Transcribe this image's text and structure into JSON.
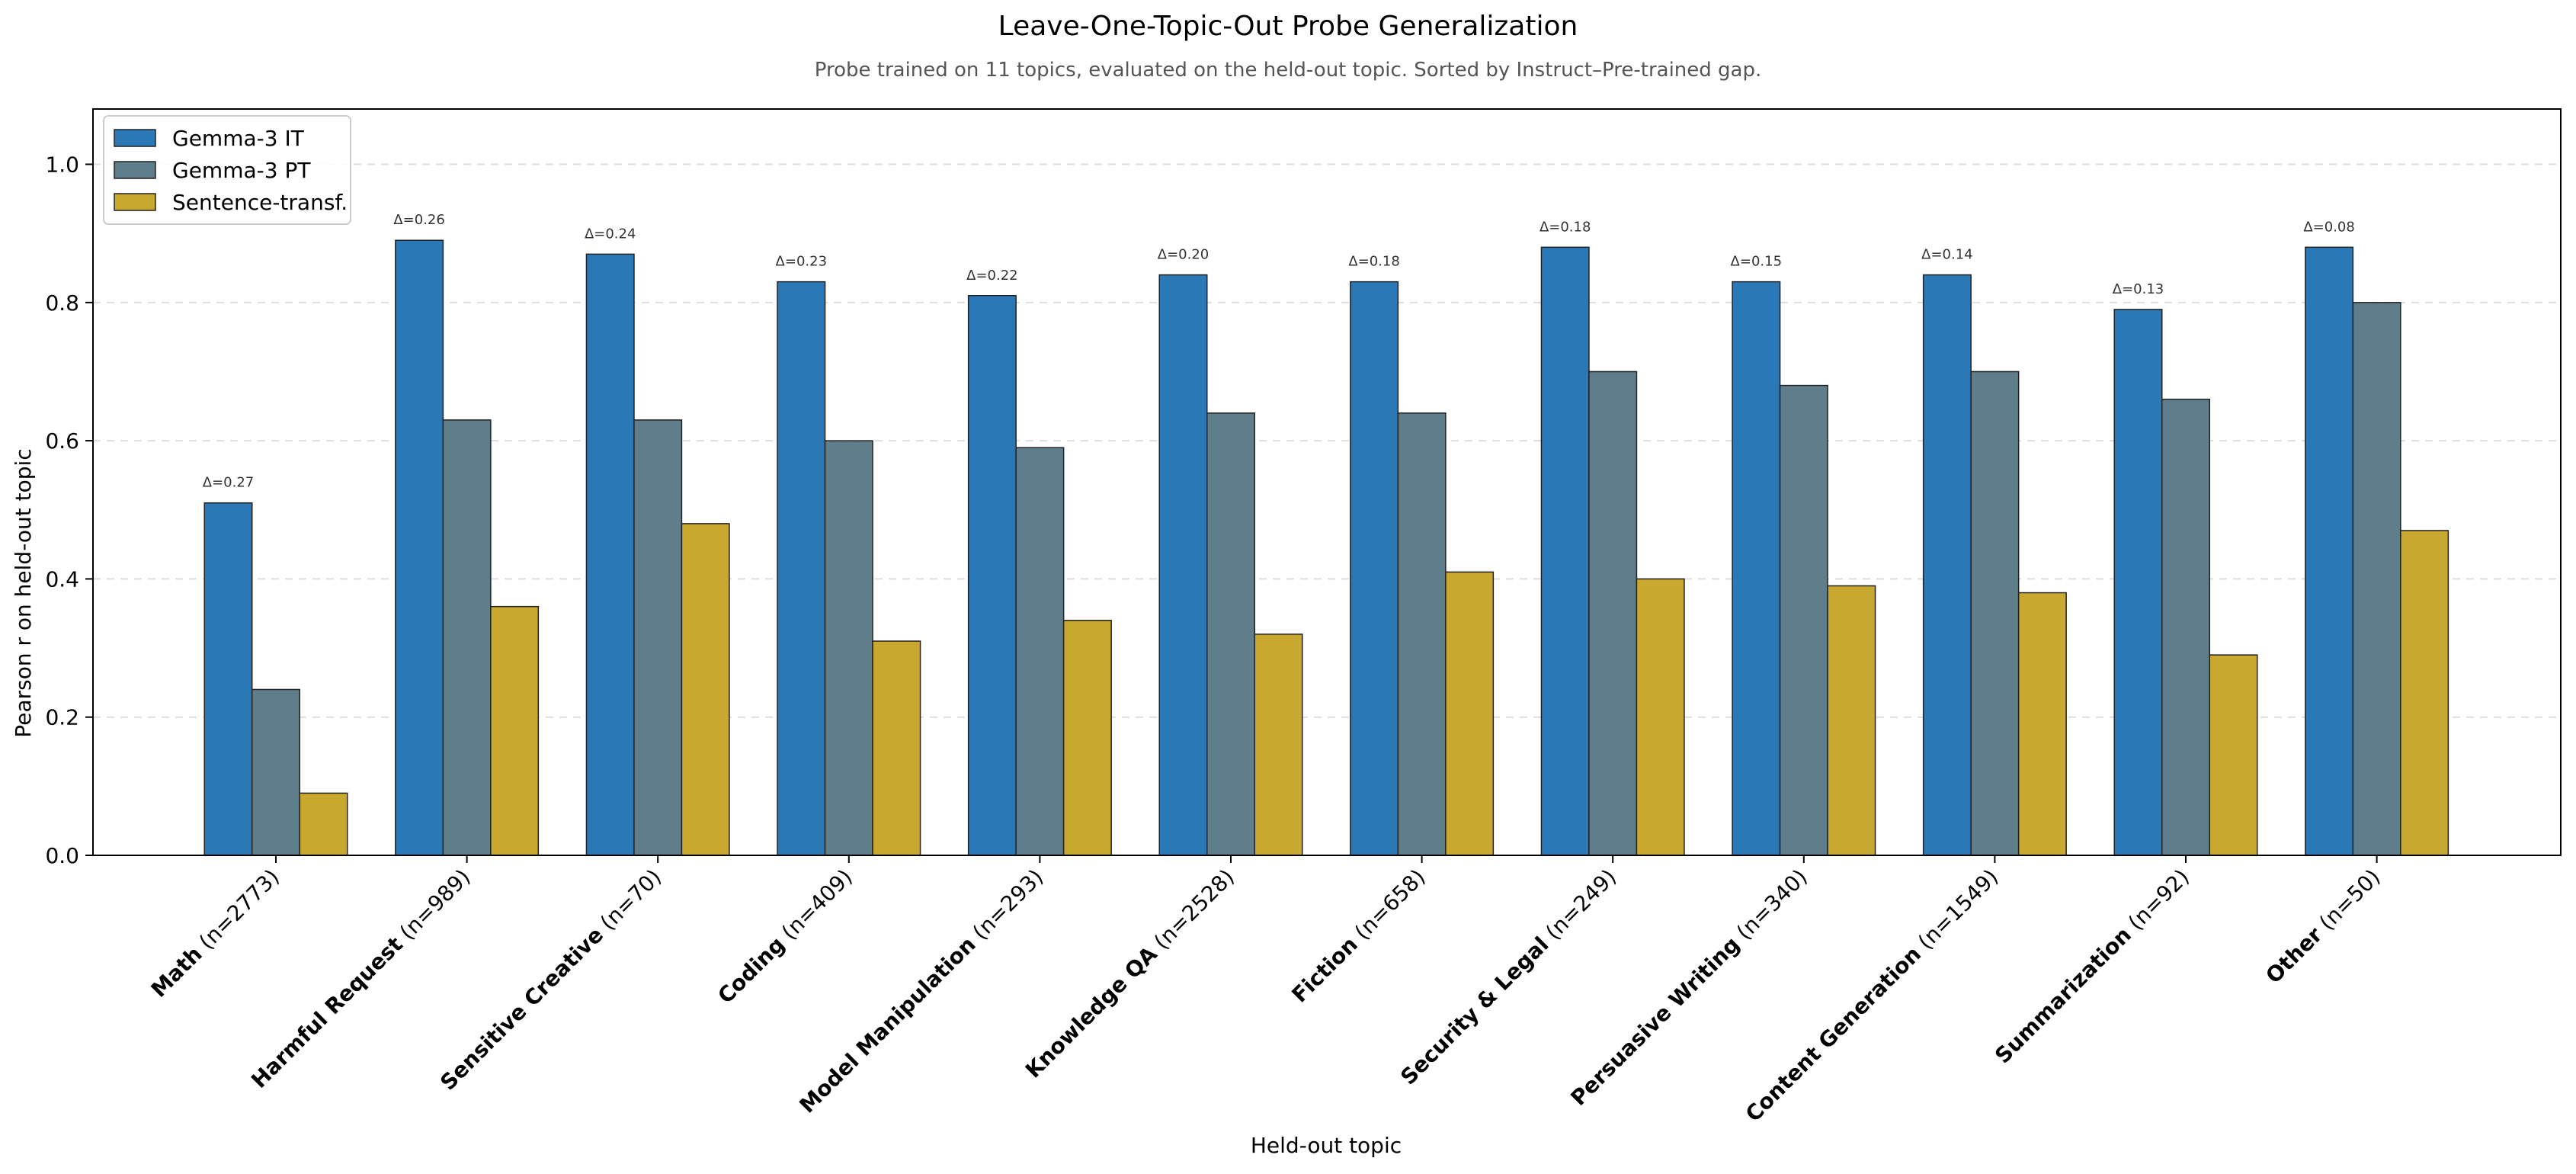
{
  "chart_data": {
    "type": "bar",
    "title": "Leave-One-Topic-Out Probe Generalization",
    "subtitle": "Probe trained on 11 topics, evaluated on the held-out topic. Sorted by Instruct–Pre-trained gap.",
    "xlabel": "Held-out topic",
    "ylabel": "Pearson r on held-out topic",
    "ylim": [
      0,
      1.08
    ],
    "yticks": [
      "0.0",
      "0.2",
      "0.4",
      "0.6",
      "0.8",
      "1.0"
    ],
    "grid": "horizontal dashed",
    "legend_position": "top-left",
    "categories": [
      {
        "topic": "Math",
        "n": "(n=2773)"
      },
      {
        "topic": "Harmful Request",
        "n": "(n=989)"
      },
      {
        "topic": "Sensitive Creative",
        "n": "(n=70)"
      },
      {
        "topic": "Coding",
        "n": "(n=409)"
      },
      {
        "topic": "Model Manipulation",
        "n": "(n=293)"
      },
      {
        "topic": "Knowledge QA",
        "n": "(n=2528)"
      },
      {
        "topic": "Fiction",
        "n": "(n=658)"
      },
      {
        "topic": "Security & Legal",
        "n": "(n=249)"
      },
      {
        "topic": "Persuasive Writing",
        "n": "(n=340)"
      },
      {
        "topic": "Content Generation",
        "n": "(n=1549)"
      },
      {
        "topic": "Summarization",
        "n": "(n=92)"
      },
      {
        "topic": "Other",
        "n": "(n=50)"
      }
    ],
    "series": [
      {
        "name": "Gemma-3 IT",
        "color": "#2b78b6",
        "values": [
          0.51,
          0.89,
          0.87,
          0.83,
          0.81,
          0.84,
          0.83,
          0.88,
          0.83,
          0.84,
          0.79,
          0.88
        ]
      },
      {
        "name": "Gemma-3 PT",
        "color": "#607d8b",
        "values": [
          0.24,
          0.63,
          0.63,
          0.6,
          0.59,
          0.64,
          0.64,
          0.7,
          0.68,
          0.7,
          0.66,
          0.8
        ]
      },
      {
        "name": "Sentence-transf.",
        "color": "#c9a82f",
        "values": [
          0.09,
          0.36,
          0.48,
          0.31,
          0.34,
          0.32,
          0.41,
          0.4,
          0.39,
          0.38,
          0.29,
          0.47
        ]
      }
    ],
    "deltas": [
      "Δ=0.27",
      "Δ=0.26",
      "Δ=0.24",
      "Δ=0.23",
      "Δ=0.22",
      "Δ=0.20",
      "Δ=0.18",
      "Δ=0.18",
      "Δ=0.15",
      "Δ=0.14",
      "Δ=0.13",
      "Δ=0.08"
    ]
  }
}
